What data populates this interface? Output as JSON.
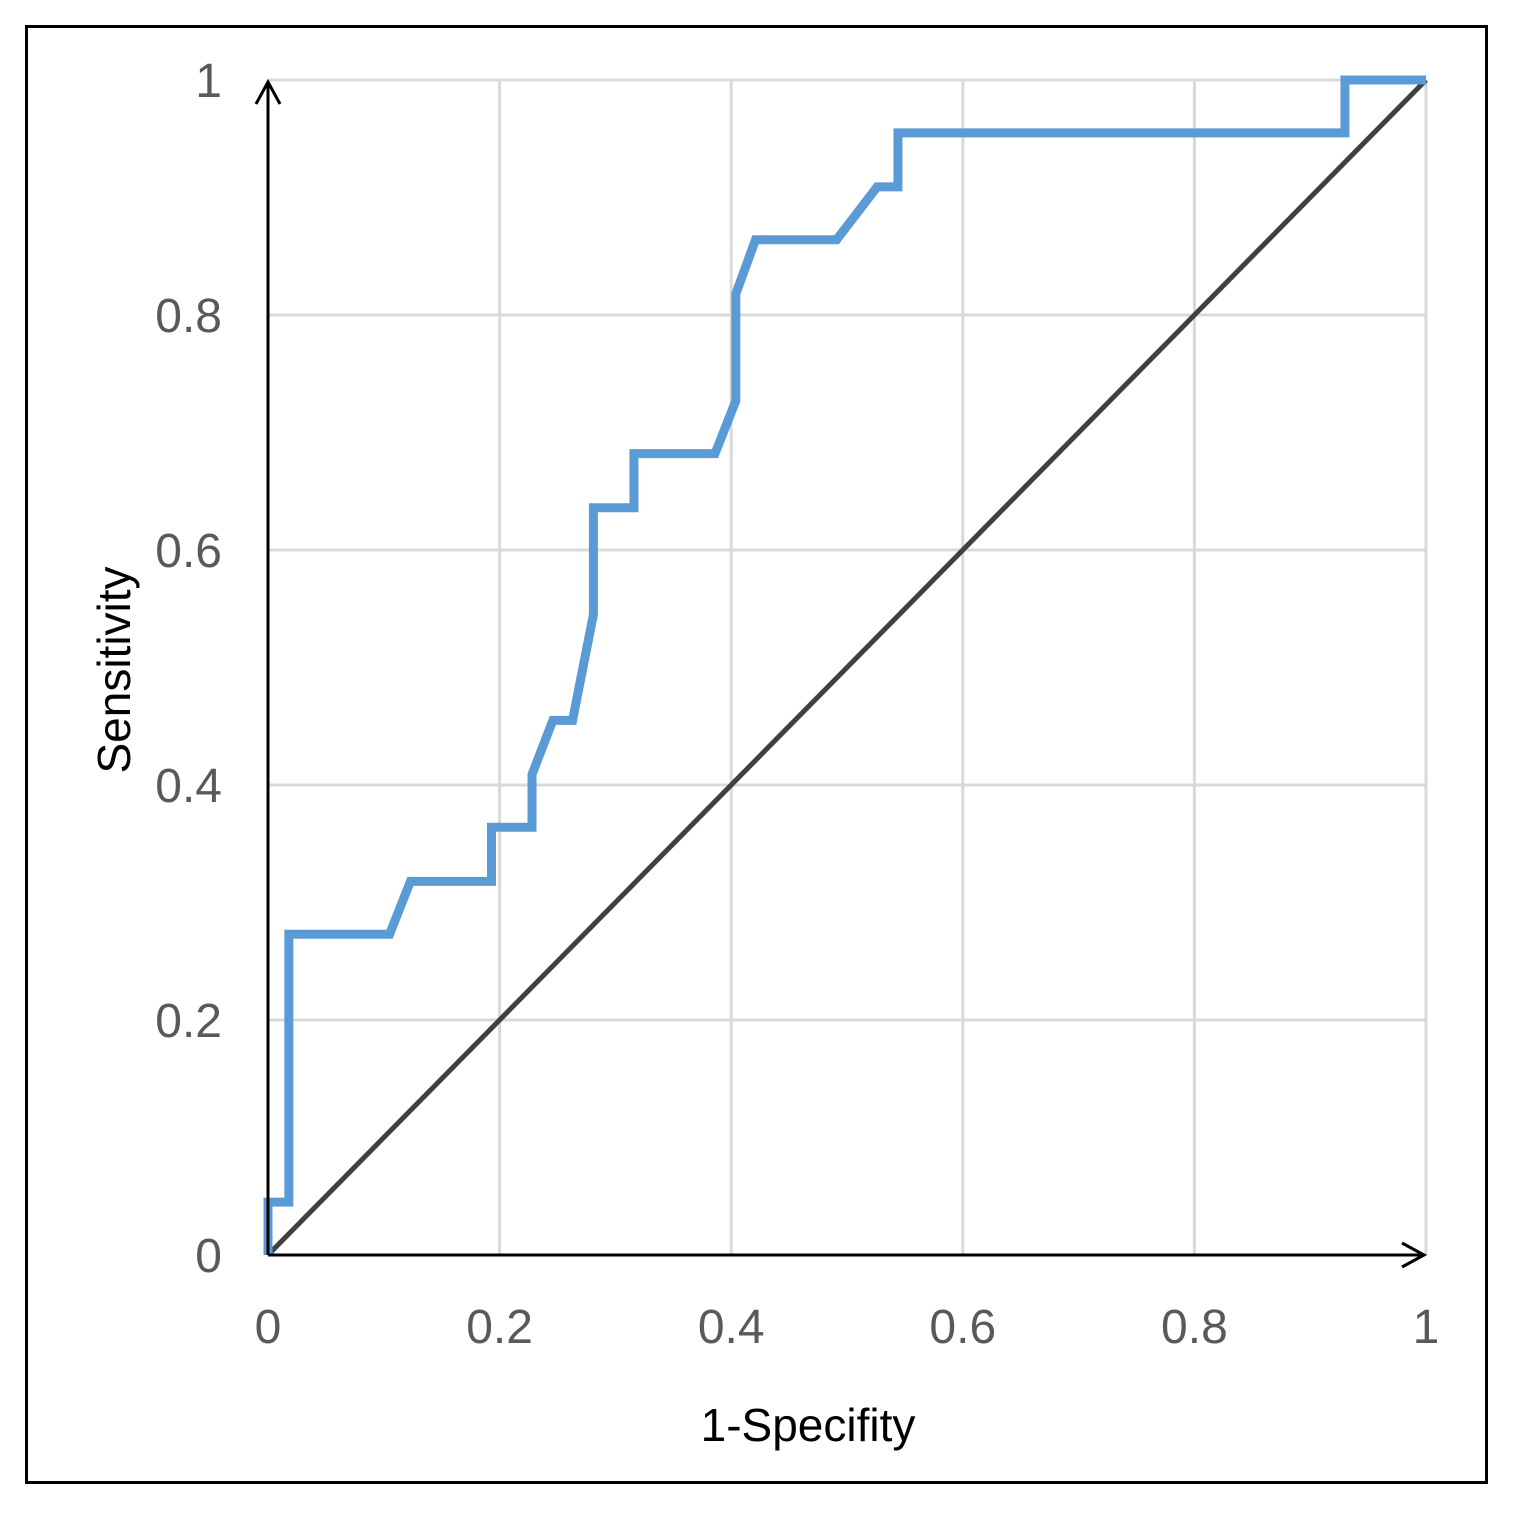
{
  "chart_data": {
    "type": "line",
    "title": "",
    "xlabel": "1-Specifity",
    "ylabel": "Sensitivity",
    "xlim": [
      0,
      1
    ],
    "ylim": [
      0,
      1
    ],
    "grid": true,
    "x_ticks": [
      "0",
      "0.2",
      "0.4",
      "0.6",
      "0.8",
      "1"
    ],
    "y_ticks": [
      "0",
      "0.2",
      "0.4",
      "0.6",
      "0.8",
      "1"
    ],
    "series": [
      {
        "color": "#5b9bd5",
        "x": [
          0,
          0,
          0.018,
          0.018,
          0.105,
          0.123,
          0.193,
          0.193,
          0.228,
          0.228,
          0.246,
          0.263,
          0.281,
          0.281,
          0.316,
          0.316,
          0.386,
          0.404,
          0.404,
          0.421,
          0.491,
          0.526,
          0.544,
          0.544,
          0.93,
          0.93,
          1
        ],
        "y": [
          0,
          0.045,
          0.045,
          0.273,
          0.273,
          0.318,
          0.318,
          0.364,
          0.364,
          0.409,
          0.455,
          0.455,
          0.545,
          0.636,
          0.636,
          0.682,
          0.682,
          0.727,
          0.818,
          0.864,
          0.864,
          0.909,
          0.909,
          0.955,
          0.955,
          1,
          1
        ]
      },
      {
        "color": "#404040",
        "x": [
          0,
          1
        ],
        "y": [
          0,
          1
        ]
      }
    ]
  }
}
